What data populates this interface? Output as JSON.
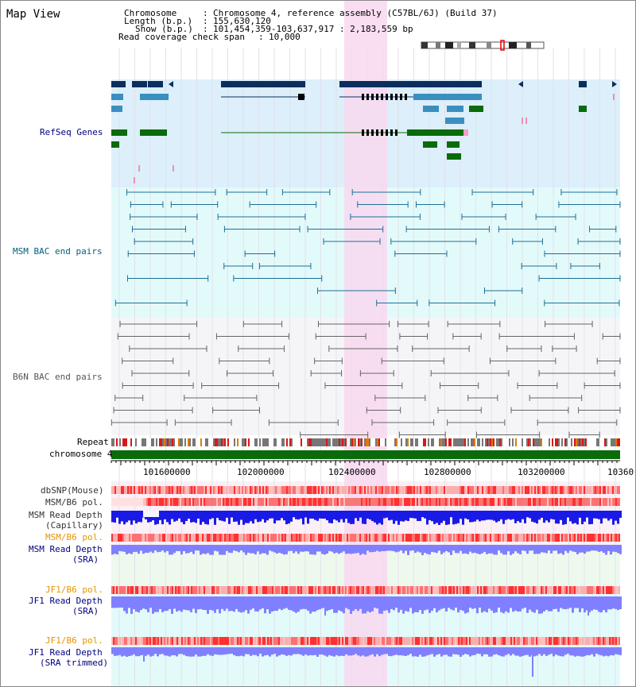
{
  "title": "Map View",
  "header": {
    "chromosome_key": "Chromosome",
    "chromosome_val": "Chromosome 4, reference assembly (C57BL/6J) (Build 37)",
    "length_key": "Length (b.p.)",
    "length_val": "155,630,120",
    "show_key": "Show (b.p.)",
    "show_val": "101,454,359-103,637,917 : 2,183,559 bp",
    "coverage_key": "Read coverage check span",
    "coverage_val": "10,000"
  },
  "tracks": {
    "refseq": "RefSeq Genes",
    "msm_bac": "MSM BAC end pairs",
    "b6n_bac": "B6N BAC end pairs",
    "repeat": "Repeat",
    "chromosome": "chromosome 4",
    "dbsnp": "dbSNP(Mouse)",
    "msm_b6_pol_1": "MSM/B6 pol.",
    "msm_depth_cap_1": "MSM Read Depth",
    "msm_depth_cap_2": "(Capillary)",
    "msm_b6_pol_2": "MSM/B6 pol.",
    "msm_depth_sra_1": "MSM Read Depth",
    "msm_depth_sra_2": "(SRA)",
    "jf1_b6_pol_1": "JF1/B6 pol.",
    "jf1_depth_sra_1": "JF1 Read Depth",
    "jf1_depth_sra_2": "(SRA)",
    "jf1_b6_pol_2": "JF1/B6 pol.",
    "jf1_depth_trim_1": "JF1 Read Depth",
    "jf1_depth_trim_2": "(SRA trimmed)"
  },
  "ruler": {
    "ticks": [
      "101600000",
      "102000000",
      "102400000",
      "102800000",
      "103200000",
      "10360"
    ]
  },
  "colors": {
    "refseq_bg": "#dceffa",
    "msm_bac_bg": "#e3fafa",
    "b6n_bac_bg": "#f5f5f8",
    "highlight": "#f8d8ee",
    "gene_dark": "#0b2e5c",
    "gene_mid": "#3b8fbf",
    "gene_green": "#0a6b0a",
    "msm_line": "#1f6f96",
    "b6n_line": "#666666",
    "chromosome": "#0a6b0a",
    "pol_red": "#f25a5a",
    "depth_blue": "#1a1ae6",
    "depth_light": "#8080ff",
    "label_navy": "#000080",
    "label_orange": "#e69500",
    "label_teal": "#006080"
  }
}
